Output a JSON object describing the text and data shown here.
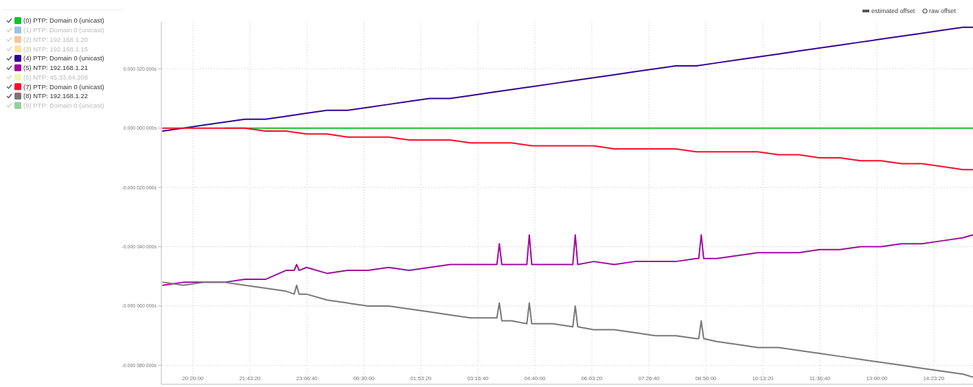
{
  "chart_data": {
    "type": "line",
    "legend": "left",
    "grid": true,
    "marker": "none",
    "line_style": "solid",
    "annotations": [
      "estimated offset",
      "raw offset"
    ],
    "xlim": [
      "2000-01-01T19:33:49",
      "2000-01-02T15:20:34"
    ],
    "xticks": [
      {
        "value": "2000-01-01T20:20:00",
        "label": "20:20:00"
      },
      {
        "value": "2000-01-01T21:43:20",
        "label": "21:43:20"
      },
      {
        "value": "2000-01-01T23:06:40",
        "label": "23:06:40"
      },
      {
        "value": "2000-01-02T00:30:00",
        "label": "00:30:00"
      },
      {
        "value": "2000-01-02T01:53:20",
        "label": "01:53:20"
      },
      {
        "value": "2000-01-02T03:16:40",
        "label": "03:16:40"
      },
      {
        "value": "2000-01-02T04:40:00",
        "label": "04:40:00"
      },
      {
        "value": "2000-01-02T06:03:20",
        "label": "06:03:20"
      },
      {
        "value": "2000-01-02T07:26:40",
        "label": "07:26:40"
      },
      {
        "value": "2000-01-02T08:50:00",
        "label": "08:50:00"
      },
      {
        "value": "2000-01-02T10:13:20",
        "label": "10:13:20"
      },
      {
        "value": "2000-01-02T11:36:40",
        "label": "11:36:40"
      },
      {
        "value": "2000-01-02T13:00:00",
        "label": "13:00:00"
      },
      {
        "value": "2000-01-02T14:23:20",
        "label": "14:23:20"
      }
    ],
    "ylim": [
      -8.64e-05,
      3.58e-05
    ],
    "yticks": [
      {
        "value": 2e-05,
        "label": "0.000 020 000s"
      },
      {
        "value": 0,
        "label": "0.000 000 000s"
      },
      {
        "value": -2e-05,
        "label": "-0.000 020 000s"
      },
      {
        "value": -4e-05,
        "label": "-0.000 040 000s"
      },
      {
        "value": -6e-05,
        "label": "-0.000 060 000s"
      },
      {
        "value": -8e-05,
        "label": "-0.000 080 000s"
      }
    ],
    "series": [
      {
        "name": "(0) PTP: Domain 0 (unicast)",
        "color": "#0bc52a",
        "x": [
          "2000-01-01T21:06",
          "2000-01-01T21:36",
          "2000-01-01T22:06",
          "2000-01-01T22:36",
          "2000-01-01T23:06",
          "2000-01-01T23:36",
          "2000-01-02T00:06",
          "2000-01-02T00:36",
          "2000-01-02T01:06",
          "2000-01-02T01:36",
          "2000-01-02T02:06",
          "2000-01-02T02:36",
          "2000-01-02T03:06",
          "2000-01-02T03:36",
          "2000-01-02T04:06",
          "2000-01-02T04:36",
          "2000-01-02T05:06",
          "2000-01-02T05:36",
          "2000-01-02T06:06",
          "2000-01-02T06:36",
          "2000-01-02T07:06",
          "2000-01-02T07:36",
          "2000-01-02T08:06",
          "2000-01-02T08:36",
          "2000-01-02T09:06",
          "2000-01-02T09:36",
          "2000-01-02T10:06",
          "2000-01-02T10:36",
          "2000-01-02T11:06",
          "2000-01-02T11:36",
          "2000-01-02T12:06",
          "2000-01-02T12:36",
          "2000-01-02T13:06",
          "2000-01-02T13:36",
          "2000-01-02T14:06",
          "2000-01-02T14:36",
          "2000-01-02T15:06",
          "2000-01-02T15:20:24"
        ],
        "values": [
          0,
          0,
          0,
          0,
          0,
          0,
          0,
          0,
          0,
          0,
          0,
          0,
          0,
          0,
          0,
          0,
          0,
          0,
          0,
          0,
          0,
          0,
          0,
          0,
          0,
          0,
          0,
          0,
          0,
          0,
          0,
          0,
          0,
          0,
          0,
          0,
          0,
          0
        ]
      },
      {
        "name": "(1) PTP: Domain 0 (unicast)",
        "color": "#9ac3e0"
      },
      {
        "name": "(2) NTP: 192.168.1.20",
        "color": "#f7c59f"
      },
      {
        "name": "(3) NTP: 192.168.1.15",
        "color": "#fde3a0"
      },
      {
        "name": "(4) PTP: Domain 0 (unicast)",
        "color": "#320096",
        "x": [
          "2000-01-01T19:36",
          "2000-01-01T20:06",
          "2000-01-01T20:36",
          "2000-01-01T21:06",
          "2000-01-01T21:36",
          "2000-01-01T22:06",
          "2000-01-01T22:36",
          "2000-01-01T23:06",
          "2000-01-01T23:36",
          "2000-01-02T00:06",
          "2000-01-02T00:36",
          "2000-01-02T01:06",
          "2000-01-02T01:36",
          "2000-01-02T02:06",
          "2000-01-02T02:36",
          "2000-01-02T03:06",
          "2000-01-02T03:36",
          "2000-01-02T04:06",
          "2000-01-02T04:36",
          "2000-01-02T05:06",
          "2000-01-02T05:36",
          "2000-01-02T06:06",
          "2000-01-02T06:36",
          "2000-01-02T07:06",
          "2000-01-02T07:36",
          "2000-01-02T08:06",
          "2000-01-02T08:36",
          "2000-01-02T09:06",
          "2000-01-02T09:36",
          "2000-01-02T10:06",
          "2000-01-02T10:36",
          "2000-01-02T11:06",
          "2000-01-02T11:36",
          "2000-01-02T12:06",
          "2000-01-02T12:36",
          "2000-01-02T13:06",
          "2000-01-02T13:36",
          "2000-01-02T14:06",
          "2000-01-02T14:36",
          "2000-01-02T15:06",
          "2000-01-02T15:20:24"
        ],
        "values": [
          -1e-06,
          0,
          1e-06,
          2e-06,
          3e-06,
          3e-06,
          4e-06,
          5e-06,
          6e-06,
          6e-06,
          7e-06,
          8e-06,
          9e-06,
          1e-05,
          1e-05,
          1.1e-05,
          1.2e-05,
          1.3e-05,
          1.4e-05,
          1.5e-05,
          1.6e-05,
          1.7e-05,
          1.8e-05,
          1.9e-05,
          2e-05,
          2.1e-05,
          2.1e-05,
          2.2e-05,
          2.3e-05,
          2.4e-05,
          2.5e-05,
          2.6e-05,
          2.7e-05,
          2.8e-05,
          2.9e-05,
          3e-05,
          3.1e-05,
          3.2e-05,
          3.3e-05,
          3.4e-05,
          3.4e-05
        ]
      },
      {
        "name": "(5) NTP: 192.168.1.21",
        "color": "#a0089e",
        "x": [
          "2000-01-01T19:36",
          "2000-01-01T20:06",
          "2000-01-01T20:36",
          "2000-01-01T21:06",
          "2000-01-01T21:36",
          "2000-01-01T22:06",
          "2000-01-01T22:36",
          "2000-01-01T22:48",
          "2000-01-01T22:51:36",
          "2000-01-01T22:55:12",
          "2000-01-01T23:06",
          "2000-01-01T23:36",
          "2000-01-02T00:06",
          "2000-01-02T00:36",
          "2000-01-02T01:06",
          "2000-01-02T01:36",
          "2000-01-02T02:06",
          "2000-01-02T02:36",
          "2000-01-02T03:06",
          "2000-01-02T03:36",
          "2000-01-02T03:44:24",
          "2000-01-02T03:48",
          "2000-01-02T03:51:36",
          "2000-01-02T04:06",
          "2000-01-02T04:28:12",
          "2000-01-02T04:31:48",
          "2000-01-02T04:35:24",
          "2000-01-02T04:36",
          "2000-01-02T05:06",
          "2000-01-02T05:35:24",
          "2000-01-02T05:39",
          "2000-01-02T05:42:36",
          "2000-01-02T06:06",
          "2000-01-02T06:36",
          "2000-01-02T07:06",
          "2000-01-02T07:36",
          "2000-01-02T08:06",
          "2000-01-02T08:36",
          "2000-01-02T08:39:36",
          "2000-01-02T08:43:12",
          "2000-01-02T08:46:48",
          "2000-01-02T09:06",
          "2000-01-02T09:36",
          "2000-01-02T10:06",
          "2000-01-02T10:36",
          "2000-01-02T11:06",
          "2000-01-02T11:36",
          "2000-01-02T12:06",
          "2000-01-02T12:36",
          "2000-01-02T13:06",
          "2000-01-02T13:36",
          "2000-01-02T14:06",
          "2000-01-02T14:36",
          "2000-01-02T15:06",
          "2000-01-02T15:20:24"
        ],
        "values": [
          -5.3e-05,
          -5.2e-05,
          -5.2e-05,
          -5.2e-05,
          -5.1e-05,
          -5.1e-05,
          -4.8e-05,
          -4.8e-05,
          -4.6e-05,
          -4.8e-05,
          -4.7e-05,
          -4.9e-05,
          -4.8e-05,
          -4.8e-05,
          -4.7e-05,
          -4.8e-05,
          -4.7e-05,
          -4.6e-05,
          -4.6e-05,
          -4.6e-05,
          -4.6e-05,
          -3.9e-05,
          -4.6e-05,
          -4.6e-05,
          -4.6e-05,
          -3.6e-05,
          -4.6e-05,
          -4.6e-05,
          -4.6e-05,
          -4.6e-05,
          -3.6e-05,
          -4.6e-05,
          -4.5e-05,
          -4.6e-05,
          -4.5e-05,
          -4.5e-05,
          -4.5e-05,
          -4.4e-05,
          -4.4e-05,
          -3.6e-05,
          -4.4e-05,
          -4.4e-05,
          -4.3e-05,
          -4.2e-05,
          -4.2e-05,
          -4.2e-05,
          -4.1e-05,
          -4.1e-05,
          -4e-05,
          -4e-05,
          -3.9e-05,
          -3.9e-05,
          -3.8e-05,
          -3.7e-05,
          -3.6e-05
        ]
      },
      {
        "name": "(6) NTP: 45.33.84.208",
        "color": "#eef7b0"
      },
      {
        "name": "(7) PTP: Domain 0 (unicast)",
        "color": "#ff0a2a",
        "x": [
          "2000-01-01T19:36",
          "2000-01-01T20:06",
          "2000-01-01T20:36",
          "2000-01-01T21:06",
          "2000-01-01T21:36",
          "2000-01-01T22:06",
          "2000-01-01T22:36",
          "2000-01-01T23:06",
          "2000-01-01T23:36",
          "2000-01-02T00:06",
          "2000-01-02T00:36",
          "2000-01-02T01:06",
          "2000-01-02T01:36",
          "2000-01-02T02:06",
          "2000-01-02T02:36",
          "2000-01-02T03:06",
          "2000-01-02T03:36",
          "2000-01-02T04:06",
          "2000-01-02T04:36",
          "2000-01-02T05:06",
          "2000-01-02T05:36",
          "2000-01-02T06:06",
          "2000-01-02T06:36",
          "2000-01-02T07:06",
          "2000-01-02T07:36",
          "2000-01-02T08:06",
          "2000-01-02T08:36",
          "2000-01-02T09:06",
          "2000-01-02T09:36",
          "2000-01-02T10:06",
          "2000-01-02T10:36",
          "2000-01-02T11:06",
          "2000-01-02T11:36",
          "2000-01-02T12:06",
          "2000-01-02T12:36",
          "2000-01-02T13:06",
          "2000-01-02T13:36",
          "2000-01-02T14:06",
          "2000-01-02T14:36",
          "2000-01-02T15:06",
          "2000-01-02T15:20:24"
        ],
        "values": [
          0,
          0,
          0,
          0,
          0,
          -1e-06,
          -1e-06,
          -2e-06,
          -2e-06,
          -3e-06,
          -3e-06,
          -3e-06,
          -4e-06,
          -4e-06,
          -4e-06,
          -5e-06,
          -5e-06,
          -5e-06,
          -6e-06,
          -6e-06,
          -6e-06,
          -6e-06,
          -7e-06,
          -7e-06,
          -7e-06,
          -7e-06,
          -8e-06,
          -8e-06,
          -8e-06,
          -8e-06,
          -9e-06,
          -9e-06,
          -1e-05,
          -1e-05,
          -1.1e-05,
          -1.1e-05,
          -1.2e-05,
          -1.2e-05,
          -1.3e-05,
          -1.4e-05,
          -1.4e-05
        ]
      },
      {
        "name": "(8) NTP: 192.168.1.22",
        "color": "#777777",
        "x": [
          "2000-01-01T19:36",
          "2000-01-01T20:06",
          "2000-01-01T20:36",
          "2000-01-01T21:06",
          "2000-01-01T21:36",
          "2000-01-01T22:06",
          "2000-01-01T22:36",
          "2000-01-01T22:48",
          "2000-01-01T22:51:36",
          "2000-01-01T22:55:12",
          "2000-01-01T23:06",
          "2000-01-01T23:36",
          "2000-01-02T00:06",
          "2000-01-02T00:36",
          "2000-01-02T01:06",
          "2000-01-02T01:36",
          "2000-01-02T02:06",
          "2000-01-02T02:36",
          "2000-01-02T03:06",
          "2000-01-02T03:36",
          "2000-01-02T03:44:24",
          "2000-01-02T03:48",
          "2000-01-02T03:51:36",
          "2000-01-02T04:06",
          "2000-01-02T04:28:12",
          "2000-01-02T04:31:48",
          "2000-01-02T04:35:24",
          "2000-01-02T04:36",
          "2000-01-02T05:06",
          "2000-01-02T05:35:24",
          "2000-01-02T05:39",
          "2000-01-02T05:42:36",
          "2000-01-02T06:06",
          "2000-01-02T06:36",
          "2000-01-02T07:06",
          "2000-01-02T07:36",
          "2000-01-02T08:06",
          "2000-01-02T08:36",
          "2000-01-02T08:39:36",
          "2000-01-02T08:43:12",
          "2000-01-02T08:46:48",
          "2000-01-02T09:06",
          "2000-01-02T09:36",
          "2000-01-02T10:06",
          "2000-01-02T10:36",
          "2000-01-02T11:06",
          "2000-01-02T11:36",
          "2000-01-02T12:06",
          "2000-01-02T12:36",
          "2000-01-02T13:06",
          "2000-01-02T13:36",
          "2000-01-02T14:06",
          "2000-01-02T14:36",
          "2000-01-02T15:06",
          "2000-01-02T15:20:24"
        ],
        "values": [
          -5.2e-05,
          -5.3e-05,
          -5.2e-05,
          -5.2e-05,
          -5.3e-05,
          -5.4e-05,
          -5.5e-05,
          -5.6e-05,
          -5.3e-05,
          -5.6e-05,
          -5.6e-05,
          -5.8e-05,
          -5.9e-05,
          -6e-05,
          -6e-05,
          -6.1e-05,
          -6.2e-05,
          -6.3e-05,
          -6.4e-05,
          -6.4e-05,
          -6.4e-05,
          -5.9e-05,
          -6.5e-05,
          -6.5e-05,
          -6.6e-05,
          -5.9e-05,
          -6.6e-05,
          -6.6e-05,
          -6.6e-05,
          -6.7e-05,
          -6e-05,
          -6.7e-05,
          -6.8e-05,
          -6.8e-05,
          -6.9e-05,
          -7e-05,
          -7e-05,
          -7.1e-05,
          -7.1e-05,
          -6.5e-05,
          -7.1e-05,
          -7.2e-05,
          -7.3e-05,
          -7.4e-05,
          -7.4e-05,
          -7.5e-05,
          -7.6e-05,
          -7.7e-05,
          -7.8e-05,
          -7.9e-05,
          -8e-05,
          -8.1e-05,
          -8.2e-05,
          -8.3e-05,
          -8.4e-05
        ]
      },
      {
        "name": "(9) PTP: Domain 0 (unicast)",
        "color": "#94d09a"
      }
    ]
  }
}
